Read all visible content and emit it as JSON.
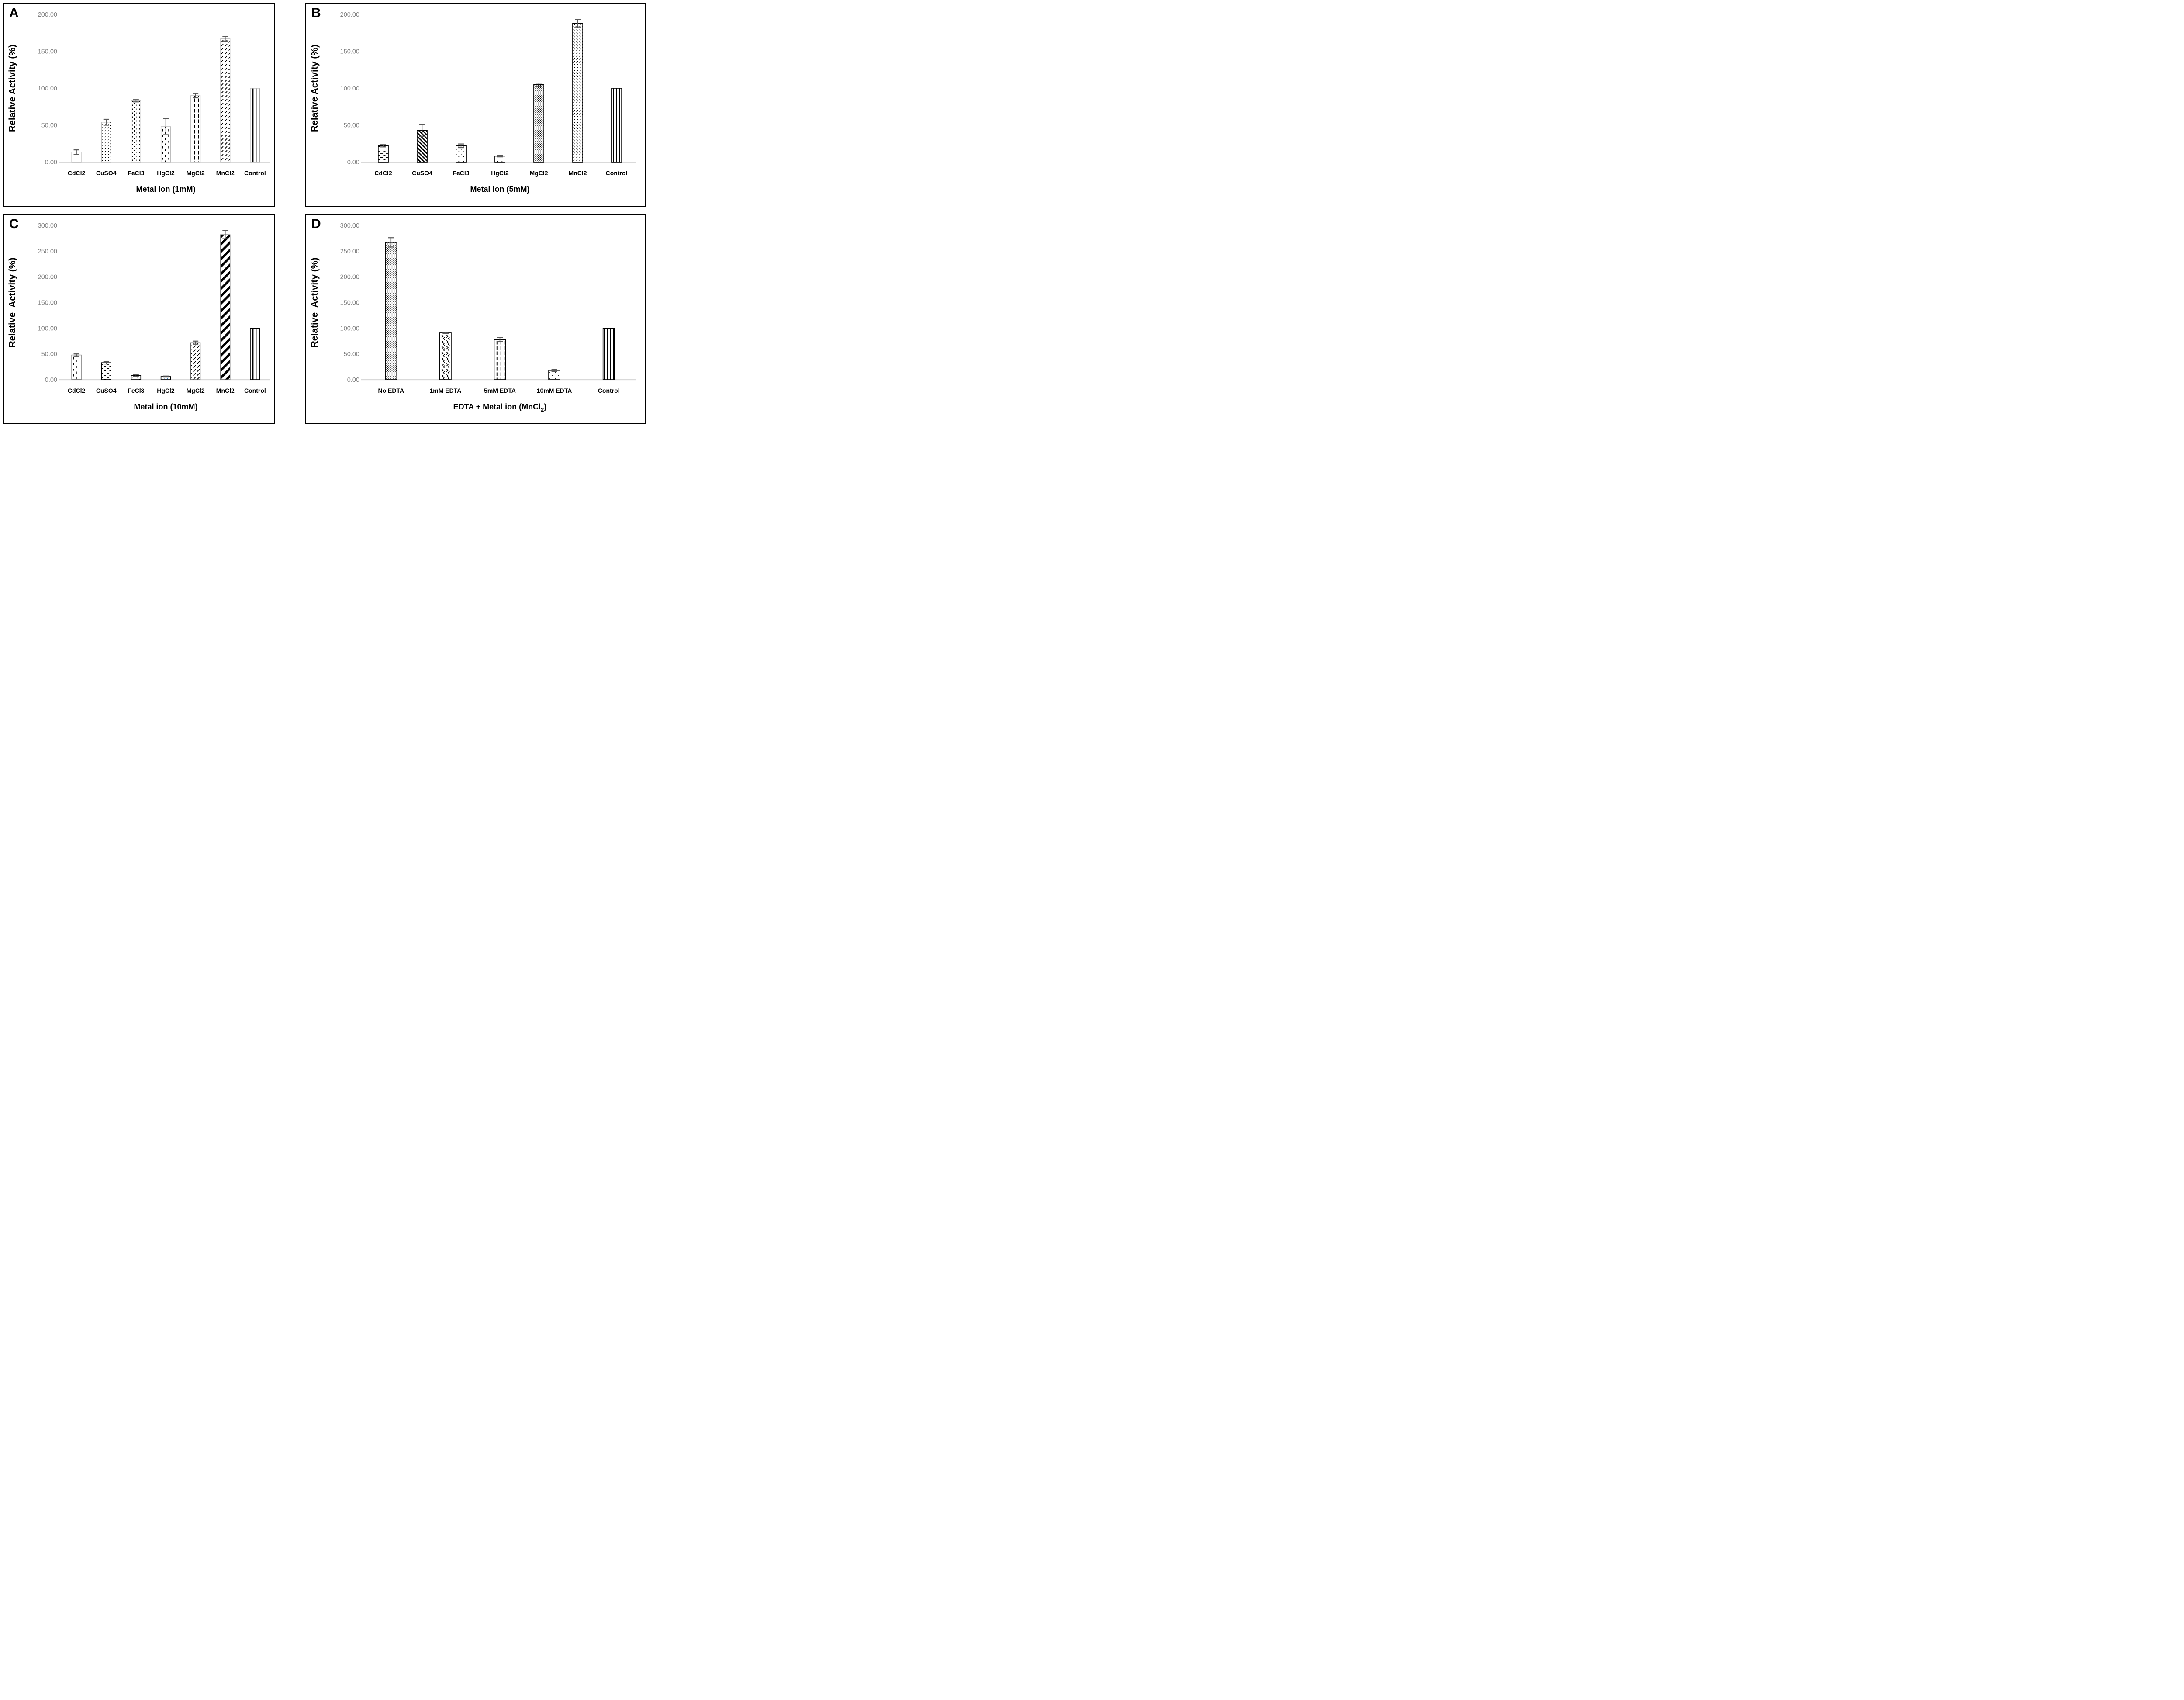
{
  "figure": {
    "description": "Four-panel bar chart figure of enzyme relative activity",
    "panel_letters": [
      "A",
      "B",
      "C",
      "D"
    ]
  },
  "colors": {
    "background": "#ffffff",
    "panel_border": "#000000",
    "tick_label": "#7f7f7f",
    "category_label": "#000000",
    "axis_title": "#000000",
    "baseline": "#d9d9d9",
    "error_bar": "#595959",
    "pattern_ink": "#000000",
    "blue_dots": "#2e75b6",
    "light_gray_bar_border": "#bdbdbd",
    "dark_gray_bar_border": "#595959"
  },
  "chart_data": [
    {
      "panel_label": "A",
      "type": "bar",
      "xlabel": "Metal ion (1mM)",
      "xlabel_parts": [
        {
          "t": "Metal ion (1mM)"
        }
      ],
      "ylabel": "Relative Activity (%)",
      "ylim": [
        0,
        200
      ],
      "ystep": 50,
      "tick_labels": [
        "0.00",
        "50.00",
        "100.00",
        "150.00",
        "200.00"
      ],
      "grid": false,
      "legend": "none",
      "categories": [
        "CdCl2",
        "CuSO4",
        "FeCl3",
        "HgCl2",
        "MgCl2",
        "MnCl2",
        "Control"
      ],
      "values": [
        13.5,
        54,
        83,
        48,
        90,
        167,
        100
      ],
      "errors": [
        3,
        4,
        1.5,
        11,
        3,
        3,
        0
      ],
      "patterns": [
        "dots-sparse",
        "dots-diag",
        "dots-cols",
        "dash-v-sparse",
        "dash-v-long",
        "diag-dash",
        "stripe-v"
      ],
      "bar_borders": [
        "#bdbdbd",
        "#bdbdbd",
        "#bdbdbd",
        "#bdbdbd",
        "#bdbdbd",
        "#bdbdbd",
        "#bdbdbd"
      ]
    },
    {
      "panel_label": "B",
      "type": "bar",
      "xlabel": "Metal ion (5mM)",
      "xlabel_parts": [
        {
          "t": "Metal ion (5mM)"
        }
      ],
      "ylabel": "Relative Activity (%)",
      "ylim": [
        0,
        200
      ],
      "ystep": 50,
      "tick_labels": [
        "0.00",
        "50.00",
        "100.00",
        "150.00",
        "200.00"
      ],
      "grid": false,
      "legend": "none",
      "categories": [
        "CdCl2",
        "CuSO4",
        "FeCl3",
        "HgCl2",
        "MgCl2",
        "MnCl2",
        "Control"
      ],
      "values": [
        22,
        43,
        22,
        8,
        105,
        188,
        100
      ],
      "errors": [
        1.5,
        8,
        2.5,
        1,
        2,
        5,
        0
      ],
      "patterns": [
        "dash-h",
        "stripe-diag",
        "dots-sparse-sm",
        "dots-sparse-sm",
        "dot-grid",
        "dots-diag",
        "stripe-v"
      ],
      "bar_borders": [
        "#000000",
        "#000000",
        "#000000",
        "#000000",
        "#000000",
        "#000000",
        "#000000"
      ]
    },
    {
      "panel_label": "C",
      "type": "bar",
      "xlabel": "Metal ion (10mM)",
      "xlabel_parts": [
        {
          "t": "Metal ion (10mM)"
        }
      ],
      "ylabel": "Relative  Activity (%)",
      "ylim": [
        0,
        300
      ],
      "ystep": 50,
      "tick_labels": [
        "0.00",
        "50.00",
        "100.00",
        "150.00",
        "200.00",
        "250.00",
        "300.00"
      ],
      "grid": false,
      "legend": "none",
      "categories": [
        "CdCl2",
        "CuSO4",
        "FeCl3",
        "HgCl2",
        "MgCl2",
        "MnCl2",
        "Control"
      ],
      "values": [
        48,
        33,
        8,
        6,
        72,
        282,
        100
      ],
      "errors": [
        2,
        2.5,
        1.5,
        1,
        3,
        8,
        0
      ],
      "patterns": [
        "dash-v-sparse",
        "dash-h",
        "dots-sparse-sm",
        "dots-blue",
        "diag-dash",
        "stripe-diag-bold",
        "stripe-v"
      ],
      "bar_borders": [
        "#595959",
        "#000000",
        "#000000",
        "#000000",
        "#595959",
        "#595959",
        "#000000"
      ]
    },
    {
      "panel_label": "D",
      "type": "bar",
      "xlabel": "EDTA + Metal ion (MnCl2)",
      "xlabel_parts": [
        {
          "t": "EDTA + Metal ion (MnCl"
        },
        {
          "t": "2",
          "sub": true
        },
        {
          "t": ")"
        }
      ],
      "ylabel": "Relative  Activity (%)",
      "ylim": [
        0,
        300
      ],
      "ystep": 50,
      "tick_labels": [
        "0.00",
        "50.00",
        "100.00",
        "150.00",
        "200.00",
        "250.00",
        "300.00"
      ],
      "grid": false,
      "legend": "none",
      "categories": [
        "No EDTA",
        "1mM EDTA",
        "5mM EDTA",
        "10mM EDTA",
        "Control"
      ],
      "values": [
        267,
        91,
        78,
        18,
        100
      ],
      "errors": [
        9,
        1,
        4,
        2,
        0
      ],
      "patterns": [
        "dot-grid",
        "chevrons",
        "dash-v-long",
        "dots-sparse",
        "stripe-v"
      ],
      "bar_borders": [
        "#000000",
        "#000000",
        "#000000",
        "#000000",
        "#000000"
      ]
    }
  ]
}
